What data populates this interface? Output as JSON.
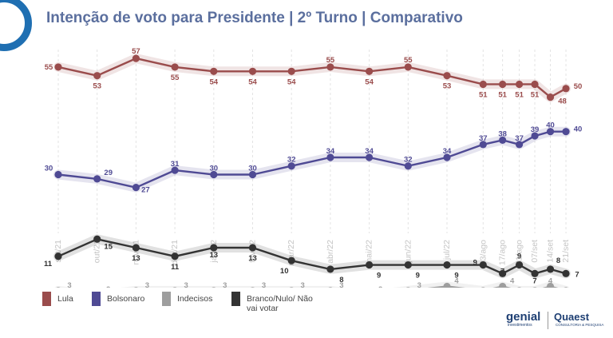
{
  "header": {
    "title": "Intenção de voto para Presidente | 2º Turno | Comparativo"
  },
  "brands": {
    "genial": "genial",
    "genial_sub": "investimentos",
    "quaest": "Quaest",
    "quaest_sub": "CONSULTORIA & PESQUISA"
  },
  "chart_data": {
    "type": "line",
    "title": "Intenção de voto para Presidente | 2º Turno | Comparativo",
    "xlabel": "",
    "ylabel": "",
    "ylim": [
      0,
      60
    ],
    "grid": "vertical dashed",
    "legend_position": "bottom-left",
    "categories": [
      "set/21",
      "out/21",
      "nov/21",
      "dez/21",
      "jan/22",
      "fev/22",
      "mar/22",
      "abr/22",
      "mai/22",
      "jun/22",
      "jul/22",
      "03/ago",
      "17/ago",
      "31/ago",
      "07/set",
      "14/set",
      "21/set"
    ],
    "x": [
      0,
      1,
      2,
      3,
      4,
      5,
      6,
      7,
      8,
      9,
      10,
      10.93,
      11.43,
      11.86,
      12.26,
      12.66,
      13.06
    ],
    "series": [
      {
        "name": "Lula",
        "color": "#9a4c4c",
        "values": [
          55,
          53,
          57,
          55,
          54,
          54,
          54,
          55,
          54,
          55,
          53,
          51,
          51,
          51,
          51,
          48,
          50
        ]
      },
      {
        "name": "Bolsonaro",
        "color": "#4f4a94",
        "values": [
          30,
          29,
          27,
          31,
          30,
          30,
          32,
          34,
          34,
          32,
          34,
          37,
          38,
          37,
          39,
          40,
          40
        ]
      },
      {
        "name": "Indecisos",
        "color": "#9e9e9e",
        "values": [
          3,
          2,
          3,
          3,
          3,
          3,
          3,
          3,
          2,
          3,
          4,
          3,
          4,
          3,
          3,
          4,
          3
        ]
      },
      {
        "name": "Branco/Nulo/ Não vai votar",
        "color": "#333333",
        "values": [
          11,
          15,
          13,
          11,
          13,
          13,
          10,
          8,
          9,
          9,
          9,
          9,
          7,
          9,
          7,
          8,
          7
        ]
      }
    ],
    "labels": [
      {
        "series": 0,
        "values": [
          "55",
          "53",
          "57",
          "55",
          "54",
          "54",
          "54",
          "55",
          "54",
          "55",
          "53",
          "51",
          "51",
          "51",
          "51",
          "48",
          "50"
        ]
      },
      {
        "series": 1,
        "values": [
          "30",
          "29",
          "27",
          "31",
          "30",
          "30",
          "32",
          "34",
          "34",
          "32",
          "34",
          "37",
          "38",
          "37",
          "39",
          "40",
          "40"
        ]
      },
      {
        "series": 2,
        "values": [
          "3",
          "2",
          "3",
          "3",
          "3",
          "3",
          "3",
          "3",
          "2",
          "3",
          "4",
          "3",
          "4",
          "3",
          "",
          "4",
          "3"
        ]
      },
      {
        "series": 3,
        "values": [
          "11",
          "15",
          "13",
          "11",
          "13",
          "13",
          "10",
          "8",
          "9",
          "9",
          "9",
          "9",
          "7",
          "9",
          "7",
          "8",
          "7"
        ]
      }
    ]
  },
  "legend": [
    {
      "label": "Lula",
      "color": "#9a4c4c"
    },
    {
      "label": "Bolsonaro",
      "color": "#4f4a94"
    },
    {
      "label": "Indecisos",
      "color": "#9e9e9e"
    },
    {
      "label": "Branco/Nulo/ Não vai votar",
      "color": "#333333"
    }
  ]
}
